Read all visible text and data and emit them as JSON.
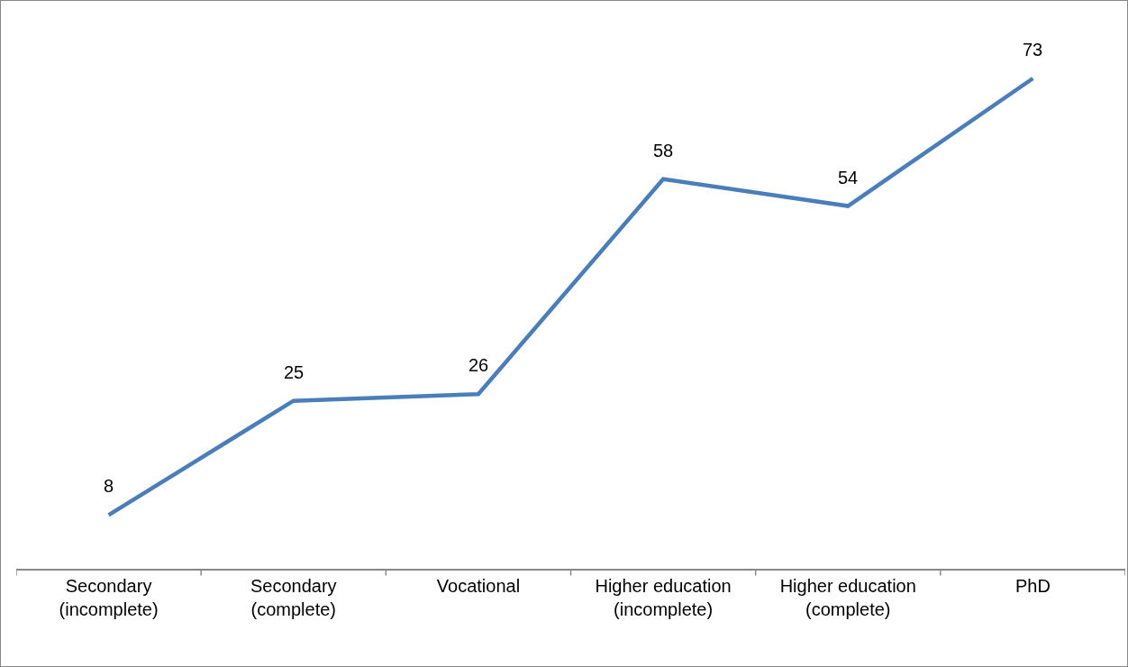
{
  "chart_data": {
    "type": "line",
    "categories": [
      "Secondary (incomplete)",
      "Secondary (complete)",
      "Vocational",
      "Higher education (incomplete)",
      "Higher education (complete)",
      "PhD"
    ],
    "series": [
      {
        "color": "#4a7ebb",
        "values": [
          8,
          25,
          26,
          58,
          54,
          73
        ]
      }
    ],
    "ylim": [
      0,
      84
    ],
    "data_labels": true,
    "grid": false,
    "marker": "none",
    "line_style": "solid",
    "tick_labels": "x"
  }
}
